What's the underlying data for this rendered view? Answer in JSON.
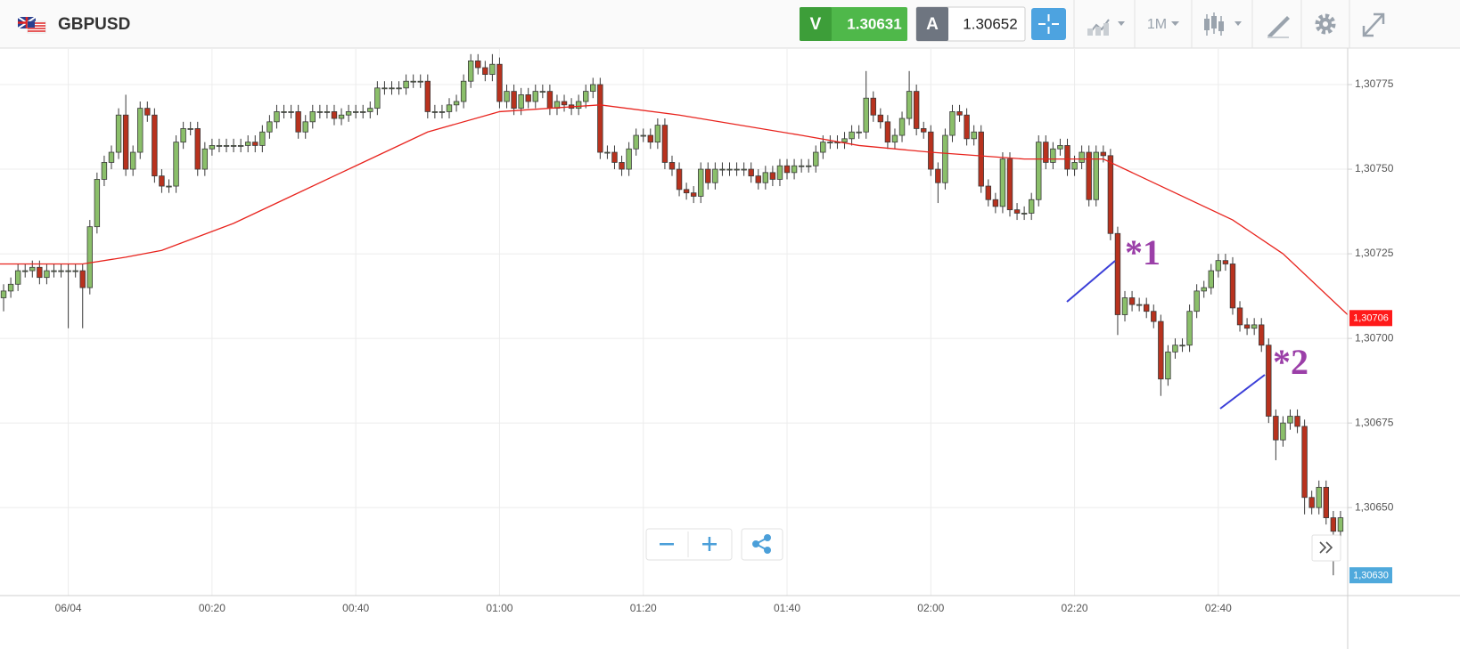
{
  "toolbar": {
    "symbol": "GBPUSD",
    "sell_label": "V",
    "sell_price": 1.30631,
    "buy_label": "A",
    "buy_price": 1.30652,
    "timeframe": "1M"
  },
  "chart_data": {
    "type": "candlestick",
    "x": [
      -9,
      -8,
      -7,
      -6,
      -5,
      -4,
      -3,
      -2,
      -1,
      0,
      1,
      2,
      3,
      4,
      5,
      6,
      7,
      8,
      9,
      10,
      11,
      12,
      13,
      14,
      15,
      16,
      17,
      18,
      19,
      20,
      21,
      22,
      23,
      24,
      25,
      26,
      27,
      28,
      29,
      30,
      31,
      32,
      33,
      34,
      35,
      36,
      37,
      38,
      39,
      40,
      41,
      42,
      43,
      44,
      45,
      46,
      47,
      48,
      49,
      50,
      51,
      52,
      53,
      54,
      55,
      56,
      57,
      58,
      59,
      60,
      61,
      62,
      63,
      64,
      65,
      66,
      67,
      68,
      69,
      70,
      71,
      72,
      73,
      74,
      75,
      76,
      77,
      78,
      79,
      80,
      81,
      82,
      83,
      84,
      85,
      86,
      87,
      88,
      89,
      90,
      91,
      92,
      93,
      94,
      95,
      96,
      97,
      98,
      99,
      100,
      101,
      102,
      103,
      104,
      105,
      106,
      107,
      108,
      109,
      110,
      111,
      112,
      113,
      114,
      115,
      116,
      117,
      118,
      119,
      120,
      121,
      122,
      123,
      124,
      125,
      126,
      127,
      128,
      129,
      130,
      131,
      132,
      133,
      134,
      135,
      136,
      137,
      138,
      139,
      140,
      141,
      142,
      143,
      144,
      145,
      146,
      147,
      148,
      149,
      150,
      151,
      152,
      153,
      154,
      155,
      156,
      157,
      158,
      159,
      160,
      161,
      162,
      163,
      164,
      165,
      166,
      167,
      168,
      169,
      170,
      171,
      172,
      173,
      174,
      175,
      176,
      177
    ],
    "open": [
      1.30712,
      1.30714,
      1.30716,
      1.3072,
      1.3072,
      1.30721,
      1.30718,
      1.3072,
      1.3072,
      1.3072,
      1.3072,
      1.3072,
      1.30715,
      1.30733,
      1.30747,
      1.30752,
      1.30755,
      1.30766,
      1.3075,
      1.30755,
      1.30768,
      1.30766,
      1.30748,
      1.30745,
      1.30745,
      1.30758,
      1.30762,
      1.30762,
      1.3075,
      1.30756,
      1.30757,
      1.30757,
      1.30757,
      1.30757,
      1.30757,
      1.30758,
      1.30757,
      1.30761,
      1.30764,
      1.30767,
      1.30767,
      1.30767,
      1.30761,
      1.30764,
      1.30767,
      1.30767,
      1.30767,
      1.30765,
      1.30766,
      1.30767,
      1.30767,
      1.30767,
      1.30768,
      1.30774,
      1.30774,
      1.30774,
      1.30774,
      1.30776,
      1.30776,
      1.30776,
      1.30767,
      1.30767,
      1.30767,
      1.30769,
      1.3077,
      1.30776,
      1.30782,
      1.3078,
      1.30778,
      1.30781,
      1.3077,
      1.30773,
      1.30768,
      1.30772,
      1.3077,
      1.30773,
      1.30773,
      1.30768,
      1.3077,
      1.30769,
      1.30768,
      1.3077,
      1.30773,
      1.30775,
      1.30755,
      1.30755,
      1.30752,
      1.3075,
      1.30756,
      1.3076,
      1.3076,
      1.30758,
      1.30763,
      1.30752,
      1.3075,
      1.30744,
      1.30743,
      1.30742,
      1.3075,
      1.30746,
      1.3075,
      1.3075,
      1.3075,
      1.3075,
      1.3075,
      1.30748,
      1.30746,
      1.30749,
      1.30747,
      1.30751,
      1.30749,
      1.30751,
      1.30751,
      1.30751,
      1.30755,
      1.30758,
      1.30758,
      1.30758,
      1.30759,
      1.30761,
      1.30761,
      1.30771,
      1.30766,
      1.30764,
      1.30758,
      1.3076,
      1.30765,
      1.30773,
      1.30762,
      1.30761,
      1.3075,
      1.30746,
      1.3076,
      1.30767,
      1.30766,
      1.30759,
      1.30761,
      1.30745,
      1.30741,
      1.30739,
      1.30753,
      1.30738,
      1.30737,
      1.30737,
      1.30741,
      1.30758,
      1.30752,
      1.30756,
      1.30757,
      1.3075,
      1.30752,
      1.30755,
      1.30741,
      1.30755,
      1.30754,
      1.30731,
      1.30707,
      1.30712,
      1.3071,
      1.3071,
      1.30708,
      1.30705,
      1.30688,
      1.30696,
      1.30698,
      1.30698,
      1.30708,
      1.30714,
      1.30715,
      1.3072,
      1.30723,
      1.30722,
      1.30709,
      1.30704,
      1.30703,
      1.30704,
      1.30698,
      1.30677,
      1.3067,
      1.30675,
      1.30677,
      1.30674,
      1.30653,
      1.3065,
      1.30656,
      1.30647,
      1.30643
    ],
    "high": [
      1.30716,
      1.30718,
      1.30722,
      1.30722,
      1.30723,
      1.30723,
      1.30722,
      1.30722,
      1.30722,
      1.30722,
      1.30722,
      1.30722,
      1.30735,
      1.30749,
      1.30754,
      1.30757,
      1.30768,
      1.30772,
      1.30757,
      1.3077,
      1.3077,
      1.30768,
      1.3075,
      1.30747,
      1.3076,
      1.30764,
      1.30764,
      1.30764,
      1.30758,
      1.30759,
      1.30759,
      1.30759,
      1.30759,
      1.30759,
      1.3076,
      1.3076,
      1.30763,
      1.30766,
      1.30769,
      1.30769,
      1.30769,
      1.30769,
      1.30766,
      1.30769,
      1.30769,
      1.30769,
      1.30769,
      1.30768,
      1.30769,
      1.30769,
      1.30769,
      1.3077,
      1.30776,
      1.30776,
      1.30776,
      1.30776,
      1.30778,
      1.30778,
      1.30778,
      1.30778,
      1.30769,
      1.30769,
      1.30771,
      1.30772,
      1.30778,
      1.30784,
      1.30784,
      1.30782,
      1.30784,
      1.30783,
      1.30775,
      1.30775,
      1.30774,
      1.30774,
      1.30775,
      1.30775,
      1.30775,
      1.30772,
      1.30772,
      1.30771,
      1.30772,
      1.30775,
      1.30777,
      1.30777,
      1.30757,
      1.30757,
      1.30754,
      1.30758,
      1.30762,
      1.30762,
      1.30762,
      1.30765,
      1.30765,
      1.30754,
      1.30752,
      1.30746,
      1.30745,
      1.30752,
      1.30752,
      1.30752,
      1.30752,
      1.30752,
      1.30752,
      1.30752,
      1.30752,
      1.3075,
      1.30751,
      1.30751,
      1.30753,
      1.30753,
      1.30753,
      1.30753,
      1.30753,
      1.30757,
      1.3076,
      1.3076,
      1.3076,
      1.30761,
      1.30763,
      1.30763,
      1.30779,
      1.30773,
      1.30768,
      1.30766,
      1.30762,
      1.30767,
      1.30779,
      1.30775,
      1.30764,
      1.30763,
      1.30752,
      1.30762,
      1.30769,
      1.30769,
      1.30768,
      1.30763,
      1.30763,
      1.30747,
      1.30743,
      1.30755,
      1.30755,
      1.3074,
      1.30739,
      1.30743,
      1.3076,
      1.3076,
      1.30758,
      1.30759,
      1.30759,
      1.30754,
      1.30757,
      1.30757,
      1.30757,
      1.30757,
      1.30756,
      1.30733,
      1.30714,
      1.30714,
      1.30712,
      1.30712,
      1.3071,
      1.30707,
      1.30698,
      1.307,
      1.307,
      1.3071,
      1.30716,
      1.30717,
      1.30722,
      1.30725,
      1.30725,
      1.30724,
      1.30711,
      1.30706,
      1.30706,
      1.30706,
      1.307,
      1.30679,
      1.30677,
      1.30679,
      1.30679,
      1.30676,
      1.30655,
      1.30658,
      1.30658,
      1.30649,
      1.30649
    ],
    "low": [
      1.30708,
      1.30712,
      1.30714,
      1.30718,
      1.30718,
      1.30716,
      1.30716,
      1.30718,
      1.30718,
      1.30703,
      1.30718,
      1.30703,
      1.30713,
      1.30731,
      1.30745,
      1.3075,
      1.30753,
      1.30748,
      1.30748,
      1.30753,
      1.30764,
      1.30746,
      1.30743,
      1.30743,
      1.30743,
      1.30756,
      1.3076,
      1.30748,
      1.30748,
      1.30754,
      1.30755,
      1.30755,
      1.30755,
      1.30755,
      1.30755,
      1.30755,
      1.30755,
      1.30759,
      1.30762,
      1.30765,
      1.30765,
      1.30759,
      1.30759,
      1.30762,
      1.30765,
      1.30765,
      1.30763,
      1.30763,
      1.30764,
      1.30765,
      1.30765,
      1.30765,
      1.30766,
      1.30772,
      1.30772,
      1.30772,
      1.30772,
      1.30774,
      1.30774,
      1.30765,
      1.30765,
      1.30765,
      1.30765,
      1.30767,
      1.30768,
      1.30774,
      1.30778,
      1.30776,
      1.30776,
      1.30768,
      1.30768,
      1.30766,
      1.30766,
      1.30768,
      1.30768,
      1.30771,
      1.30766,
      1.30766,
      1.30767,
      1.30766,
      1.30766,
      1.30768,
      1.30771,
      1.30753,
      1.30753,
      1.3075,
      1.30748,
      1.30748,
      1.30754,
      1.30758,
      1.30756,
      1.30756,
      1.3075,
      1.30748,
      1.30742,
      1.30741,
      1.3074,
      1.3074,
      1.30744,
      1.30744,
      1.30748,
      1.30748,
      1.30748,
      1.30748,
      1.30746,
      1.30744,
      1.30744,
      1.30745,
      1.30745,
      1.30747,
      1.30747,
      1.30749,
      1.30749,
      1.30749,
      1.30753,
      1.30756,
      1.30756,
      1.30756,
      1.30757,
      1.30759,
      1.30759,
      1.30764,
      1.30762,
      1.30756,
      1.30756,
      1.30758,
      1.30763,
      1.3076,
      1.30759,
      1.30748,
      1.3074,
      1.30744,
      1.30758,
      1.30764,
      1.30757,
      1.30757,
      1.30743,
      1.30739,
      1.30737,
      1.30737,
      1.30736,
      1.30735,
      1.30735,
      1.30735,
      1.30739,
      1.3075,
      1.3075,
      1.30754,
      1.30748,
      1.30748,
      1.3075,
      1.30739,
      1.30739,
      1.30752,
      1.30729,
      1.30701,
      1.30705,
      1.30708,
      1.30708,
      1.30706,
      1.30703,
      1.30683,
      1.30686,
      1.30694,
      1.30696,
      1.30696,
      1.30706,
      1.30712,
      1.30713,
      1.30718,
      1.3072,
      1.30707,
      1.30702,
      1.30701,
      1.30701,
      1.30696,
      1.30675,
      1.30664,
      1.30668,
      1.30673,
      1.30672,
      1.30648,
      1.30648,
      1.30648,
      1.30645,
      1.3063,
      1.30641
    ],
    "close": [
      1.30714,
      1.30716,
      1.3072,
      1.3072,
      1.30721,
      1.30718,
      1.3072,
      1.3072,
      1.3072,
      1.3072,
      1.3072,
      1.30715,
      1.30733,
      1.30747,
      1.30752,
      1.30755,
      1.30766,
      1.3075,
      1.30755,
      1.30768,
      1.30766,
      1.30748,
      1.30745,
      1.30745,
      1.30758,
      1.30762,
      1.30762,
      1.3075,
      1.30756,
      1.30757,
      1.30757,
      1.30757,
      1.30757,
      1.30757,
      1.30758,
      1.30757,
      1.30761,
      1.30764,
      1.30767,
      1.30767,
      1.30767,
      1.30761,
      1.30764,
      1.30767,
      1.30767,
      1.30767,
      1.30765,
      1.30766,
      1.30767,
      1.30767,
      1.30767,
      1.30768,
      1.30774,
      1.30774,
      1.30774,
      1.30774,
      1.30776,
      1.30776,
      1.30776,
      1.30767,
      1.30767,
      1.30767,
      1.30769,
      1.3077,
      1.30776,
      1.30782,
      1.3078,
      1.30778,
      1.30781,
      1.3077,
      1.30773,
      1.30768,
      1.30772,
      1.3077,
      1.30773,
      1.30773,
      1.30768,
      1.3077,
      1.30769,
      1.30768,
      1.3077,
      1.30773,
      1.30775,
      1.30755,
      1.30755,
      1.30752,
      1.3075,
      1.30756,
      1.3076,
      1.3076,
      1.30758,
      1.30763,
      1.30752,
      1.3075,
      1.30744,
      1.30743,
      1.30742,
      1.3075,
      1.30746,
      1.3075,
      1.3075,
      1.3075,
      1.3075,
      1.3075,
      1.30748,
      1.30746,
      1.30749,
      1.30747,
      1.30751,
      1.30749,
      1.30751,
      1.30751,
      1.30751,
      1.30755,
      1.30758,
      1.30758,
      1.30758,
      1.30759,
      1.30761,
      1.30761,
      1.30771,
      1.30766,
      1.30764,
      1.30758,
      1.3076,
      1.30765,
      1.30773,
      1.30762,
      1.30761,
      1.3075,
      1.30746,
      1.3076,
      1.30767,
      1.30766,
      1.30759,
      1.30761,
      1.30745,
      1.30741,
      1.30739,
      1.30753,
      1.30738,
      1.30737,
      1.30737,
      1.30741,
      1.30758,
      1.30752,
      1.30756,
      1.30757,
      1.3075,
      1.30752,
      1.30755,
      1.30741,
      1.30755,
      1.30754,
      1.30731,
      1.30707,
      1.30712,
      1.3071,
      1.3071,
      1.30708,
      1.30705,
      1.30688,
      1.30696,
      1.30698,
      1.30698,
      1.30708,
      1.30714,
      1.30715,
      1.3072,
      1.30723,
      1.30722,
      1.30709,
      1.30704,
      1.30703,
      1.30704,
      1.30698,
      1.30677,
      1.3067,
      1.30675,
      1.30677,
      1.30674,
      1.30653,
      1.3065,
      1.30656,
      1.30647,
      1.30643,
      1.30647
    ],
    "up_color": "#8bbf6a",
    "down_color": "#b8321e",
    "xlim": [
      -9.5,
      178
    ],
    "xticks": [
      {
        "value": 0,
        "label": "06/04"
      },
      {
        "value": 20,
        "label": "00:20"
      },
      {
        "value": 40,
        "label": "00:40"
      },
      {
        "value": 60,
        "label": "01:00"
      },
      {
        "value": 80,
        "label": "01:20"
      },
      {
        "value": 100,
        "label": "01:40"
      },
      {
        "value": 120,
        "label": "02:00"
      },
      {
        "value": 140,
        "label": "02:20"
      },
      {
        "value": 160,
        "label": "02:40"
      }
    ],
    "ylim": [
      1.30624,
      1.30785
    ],
    "yticks": [
      {
        "value": 1.3065,
        "label": "1,30650"
      },
      {
        "value": 1.30675,
        "label": "1,30675"
      },
      {
        "value": 1.307,
        "label": "1,30700"
      },
      {
        "value": 1.30725,
        "label": "1,30725"
      },
      {
        "value": 1.3075,
        "label": "1,30750"
      },
      {
        "value": 1.30775,
        "label": "1,30775"
      }
    ],
    "grid": true,
    "moving_average": {
      "color": "#e8231d",
      "x": [
        -9.5,
        2,
        8,
        13,
        23,
        30,
        40,
        50,
        60,
        74,
        85,
        102,
        110,
        120,
        133,
        144,
        152,
        162,
        169,
        178
      ],
      "values": [
        1.30722,
        1.30722,
        1.30724,
        1.30726,
        1.30734,
        1.30741,
        1.30751,
        1.30761,
        1.30767,
        1.30769,
        1.30766,
        1.3076,
        1.30757,
        1.30755,
        1.30753,
        1.30753,
        1.30745,
        1.30735,
        1.30725,
        1.30707
      ]
    },
    "price_tags": [
      {
        "value": 1.30706,
        "label": "1,30706",
        "color": "#ff1a1a"
      },
      {
        "value": 1.3063,
        "label": "1,30630",
        "color": "#4fa9dc"
      }
    ],
    "annotations": [
      "*1",
      "*2"
    ]
  }
}
